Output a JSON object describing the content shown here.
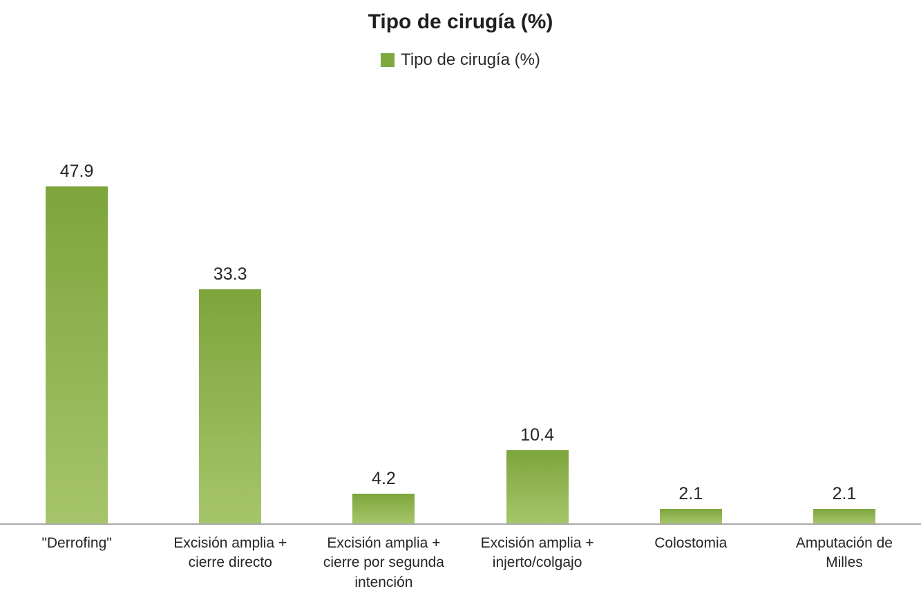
{
  "chart": {
    "title": "Tipo de cirugía  (%)",
    "legend": {
      "label": "Tipo de cirugía  (%)",
      "swatch_color": "#7FA83F"
    }
  },
  "chart_data": {
    "type": "bar",
    "title": "Tipo de cirugía (%)",
    "categories": [
      "\"Derrofing\"",
      "Excisión amplia +\ncierre directo",
      "Excisión amplia +\ncierre por segunda\nintención",
      "Excisión amplia +\ninjerto/colgajo",
      "Colostomia",
      "Amputación de\nMilles"
    ],
    "values": [
      47.9,
      33.3,
      4.2,
      10.4,
      2.1,
      2.1
    ],
    "value_labels": [
      "47.9",
      "33.3",
      "4.2",
      "10.4",
      "2.1",
      "2.1"
    ],
    "xlabel": "",
    "ylabel": "",
    "ylim": [
      0,
      55
    ],
    "grid": false,
    "legend_position": "top",
    "bar_color_top": "#7DA53C",
    "bar_color_bottom": "#A6C56A",
    "axis_line_color": "#a8a8a8"
  }
}
